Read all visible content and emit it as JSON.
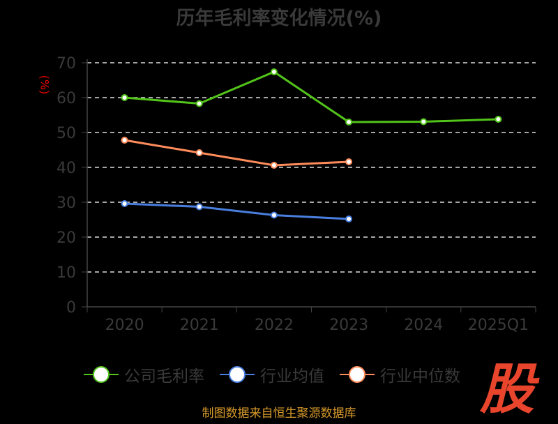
{
  "chart_data": {
    "type": "line",
    "title": "历年毛利率变化情况(%)",
    "ylabel": "(%)",
    "categories": [
      "2020",
      "2021",
      "2022",
      "2023",
      "2024",
      "2025Q1"
    ],
    "ylim": [
      0,
      70
    ],
    "yticks": [
      0,
      10,
      20,
      30,
      40,
      50,
      60,
      70
    ],
    "grid": true,
    "legend_position": "bottom",
    "series": [
      {
        "name": "公司毛利率",
        "color": "#52c41a",
        "values": [
          60.0,
          58.3,
          67.4,
          53.0,
          53.1,
          53.8
        ]
      },
      {
        "name": "行业均值",
        "color": "#4a7fe0",
        "values": [
          29.6,
          28.7,
          26.3,
          25.2,
          null,
          null
        ]
      },
      {
        "name": "行业中位数",
        "color": "#ff8c5a",
        "values": [
          47.8,
          44.2,
          40.6,
          41.6,
          null,
          null
        ]
      }
    ]
  },
  "watermark": "股",
  "source": "制图数据来自恒生聚源数据库"
}
